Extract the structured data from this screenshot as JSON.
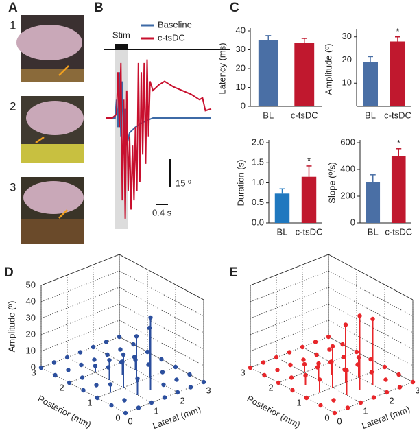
{
  "panel_labels": [
    "A",
    "B",
    "C",
    "D",
    "E"
  ],
  "photos": {
    "labels": [
      "1",
      "2",
      "3"
    ]
  },
  "chart_data": [
    {
      "type": "line",
      "stim": {
        "label": "Stim",
        "start": 0.3,
        "end": 0.73
      },
      "scale_bars": {
        "y": {
          "value": 15,
          "label": "15 º"
        },
        "x": {
          "value": 0.4,
          "label": "0.4 s"
        }
      },
      "series": [
        {
          "name": "Baseline",
          "color": "#3d6aa6",
          "x": [
            0,
            0.3,
            0.35,
            0.4,
            0.45,
            0.5,
            0.55,
            0.6,
            0.65,
            0.7,
            0.8,
            1.0,
            1.3,
            1.6,
            3.6
          ],
          "values": [
            0,
            0,
            10,
            -5,
            25,
            -10,
            20,
            -20,
            5,
            -15,
            -8,
            -5,
            -2,
            0,
            0
          ]
        },
        {
          "name": "c-tsDC",
          "color": "#c8102e",
          "x": [
            0,
            0.2,
            0.35,
            0.4,
            0.45,
            0.5,
            0.55,
            0.6,
            0.65,
            0.7,
            0.75,
            0.8,
            0.85,
            0.9,
            0.95,
            1.0,
            1.05,
            1.1,
            1.15,
            1.2,
            1.25,
            1.3,
            1.35,
            1.4,
            1.45,
            1.5,
            1.6,
            1.8,
            2.0,
            2.3,
            2.6,
            2.9,
            3.2,
            3.3,
            3.4,
            3.6
          ],
          "values": [
            0,
            0,
            2,
            25,
            -5,
            30,
            -45,
            10,
            -55,
            15,
            -40,
            -10,
            -50,
            -15,
            -45,
            -5,
            -40,
            30,
            -35,
            25,
            -20,
            30,
            -25,
            32,
            -10,
            20,
            15,
            18,
            20,
            17,
            15,
            13,
            10,
            11,
            4,
            5
          ]
        }
      ]
    },
    {
      "type": "bar",
      "ylabel": "Latency (ms)",
      "categories": [
        "BL",
        "c-tsDC"
      ],
      "values": [
        35,
        33.5
      ],
      "errors": [
        2.5,
        2.5
      ],
      "colors": [
        "#4a6fa5",
        "#c0182e"
      ],
      "ylim": [
        0,
        40
      ],
      "yticks": [
        0,
        10,
        20,
        30,
        40
      ]
    },
    {
      "type": "bar",
      "ylabel": "Amplitude (º)",
      "categories": [
        "BL",
        "c-tsDC"
      ],
      "values": [
        19,
        28
      ],
      "errors": [
        2.5,
        2
      ],
      "colors": [
        "#4a6fa5",
        "#c0182e"
      ],
      "ylim": [
        0,
        32
      ],
      "yticks": [
        10,
        20,
        30
      ],
      "annotation": {
        "text": "*",
        "category": "c-tsDC"
      }
    },
    {
      "type": "bar",
      "ylabel": "Duration (s)",
      "categories": [
        "BL",
        "c-tsDC"
      ],
      "values": [
        0.73,
        1.15
      ],
      "errors": [
        0.12,
        0.27
      ],
      "colors": [
        "#1f78bf",
        "#c0182e"
      ],
      "ylim": [
        0,
        2
      ],
      "yticks": [
        {
          "value": 0,
          "label": "0.0"
        },
        {
          "value": 0.5,
          "label": "0.5"
        },
        {
          "value": 1,
          "label": "1.0"
        },
        {
          "value": 1.5,
          "label": "1.5"
        },
        {
          "value": 2,
          "label": "2.0"
        }
      ],
      "annotation": {
        "text": "*",
        "category": "c-tsDC"
      }
    },
    {
      "type": "bar",
      "ylabel": "Slope (º/s)",
      "categories": [
        "BL",
        "c-tsDC"
      ],
      "values": [
        305,
        500
      ],
      "errors": [
        55,
        55
      ],
      "colors": [
        "#4a6fa5",
        "#c0182e"
      ],
      "ylim": [
        0,
        600
      ],
      "yticks": [
        0,
        200,
        400,
        600
      ],
      "annotation": {
        "text": "*",
        "category": "c-tsDC"
      }
    },
    {
      "type": "stem3d",
      "xlabel": "Lateral (mm)",
      "ylabel": "Posterior (mm)",
      "zlabel": "Amplitude (º)",
      "color": "#2c4f9e",
      "show_zticklabels": true,
      "xlim": [
        0,
        3
      ],
      "ylim": [
        0,
        3
      ],
      "zlim": [
        0,
        50
      ],
      "xticks": [
        0,
        1,
        2,
        3
      ],
      "yticks": [
        0,
        1,
        2,
        3
      ],
      "zticks": [
        0,
        10,
        20,
        30,
        40,
        50
      ],
      "x": [
        0,
        0.5,
        1,
        1.5,
        2,
        2.5,
        3,
        0,
        0.5,
        1,
        1.5,
        2,
        2.5,
        3,
        0,
        0.5,
        1,
        1.5,
        2,
        2.5,
        3,
        0,
        0.5,
        1,
        1.5,
        2,
        2.5,
        3,
        0,
        0.5,
        1,
        1.5,
        2,
        2.5,
        3,
        0,
        0.5,
        1,
        1.5,
        2,
        2.5,
        3,
        0,
        0.5,
        1,
        1.5,
        2,
        2.5,
        3
      ],
      "y": [
        0,
        0,
        0,
        0,
        0,
        0,
        0,
        0.5,
        0.5,
        0.5,
        0.5,
        0.5,
        0.5,
        0.5,
        1,
        1,
        1,
        1,
        1,
        1,
        1,
        1.5,
        1.5,
        1.5,
        1.5,
        1.5,
        1.5,
        1.5,
        2,
        2,
        2,
        2,
        2,
        2,
        2,
        2.5,
        2.5,
        2.5,
        2.5,
        2.5,
        2.5,
        2.5,
        3,
        3,
        3,
        3,
        3,
        3,
        3
      ],
      "values": [
        0,
        0,
        0,
        0,
        0,
        0,
        0,
        0,
        0,
        10,
        44,
        0,
        0,
        0,
        0,
        5,
        20,
        28,
        30,
        0,
        0,
        0,
        0,
        12,
        8,
        6,
        0,
        0,
        0,
        0,
        4,
        0,
        0,
        0,
        0,
        0,
        0,
        0,
        0,
        0,
        0,
        0,
        0,
        0,
        0,
        0,
        0,
        0,
        0
      ]
    },
    {
      "type": "stem3d",
      "xlabel": "Lateral (mm)",
      "ylabel": "Posterior (mm)",
      "color": "#e8262a",
      "show_zticklabels": false,
      "xlim": [
        0,
        3
      ],
      "ylim": [
        0,
        3
      ],
      "zlim": [
        0,
        50
      ],
      "xticks": [
        0,
        1,
        2,
        3
      ],
      "yticks": [
        0,
        1,
        2,
        3
      ],
      "zticks": [
        0,
        10,
        20,
        30,
        40,
        50
      ],
      "x": [
        0,
        0.5,
        1,
        1.5,
        2,
        2.5,
        3,
        0,
        0.5,
        1,
        1.5,
        2,
        2.5,
        3,
        0,
        0.5,
        1,
        1.5,
        2,
        2.5,
        3,
        0,
        0.5,
        1,
        1.5,
        2,
        2.5,
        3,
        0,
        0.5,
        1,
        1.5,
        2,
        2.5,
        3,
        0,
        0.5,
        1,
        1.5,
        2,
        2.5,
        3,
        0,
        0.5,
        1,
        1.5,
        2,
        2.5,
        3
      ],
      "y": [
        0,
        0,
        0,
        0,
        0,
        0,
        0,
        0.5,
        0.5,
        0.5,
        0.5,
        0.5,
        0.5,
        0.5,
        1,
        1,
        1,
        1,
        1,
        1,
        1,
        1.5,
        1.5,
        1.5,
        1.5,
        1.5,
        1.5,
        1.5,
        2,
        2,
        2,
        2,
        2,
        2,
        2,
        2.5,
        2.5,
        2.5,
        2.5,
        2.5,
        2.5,
        2.5,
        3,
        3,
        3,
        3,
        3,
        3,
        3
      ],
      "values": [
        0,
        0,
        0,
        0,
        0,
        0,
        0,
        0,
        0,
        15,
        45,
        40,
        0,
        0,
        0,
        8,
        25,
        35,
        12,
        0,
        0,
        0,
        6,
        10,
        8,
        0,
        0,
        0,
        0,
        0,
        5,
        0,
        0,
        0,
        0,
        0,
        0,
        0,
        0,
        0,
        0,
        0,
        0,
        0,
        0,
        0,
        0,
        0,
        0
      ]
    }
  ]
}
